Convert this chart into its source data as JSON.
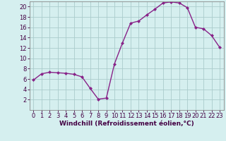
{
  "x": [
    0,
    1,
    2,
    3,
    4,
    5,
    6,
    7,
    8,
    9,
    10,
    11,
    12,
    13,
    14,
    15,
    16,
    17,
    18,
    19,
    20,
    21,
    22,
    23
  ],
  "y": [
    5.8,
    7.0,
    7.3,
    7.2,
    7.1,
    6.9,
    6.4,
    4.2,
    2.1,
    2.3,
    8.9,
    13.0,
    16.8,
    17.2,
    18.4,
    19.5,
    20.7,
    20.9,
    20.7,
    19.8,
    16.0,
    15.7,
    14.4,
    12.1
  ],
  "line_color": "#882288",
  "marker": "D",
  "marker_size": 2.0,
  "bg_color": "#d5efef",
  "grid_color": "#aacccc",
  "xlabel": "Windchill (Refroidissement éolien,°C)",
  "xlim": [
    -0.5,
    23.5
  ],
  "ylim": [
    0,
    21
  ],
  "yticks": [
    2,
    4,
    6,
    8,
    10,
    12,
    14,
    16,
    18,
    20
  ],
  "xticks": [
    0,
    1,
    2,
    3,
    4,
    5,
    6,
    7,
    8,
    9,
    10,
    11,
    12,
    13,
    14,
    15,
    16,
    17,
    18,
    19,
    20,
    21,
    22,
    23
  ],
  "xlabel_fontsize": 6.5,
  "tick_fontsize": 6.0,
  "line_width": 1.0
}
